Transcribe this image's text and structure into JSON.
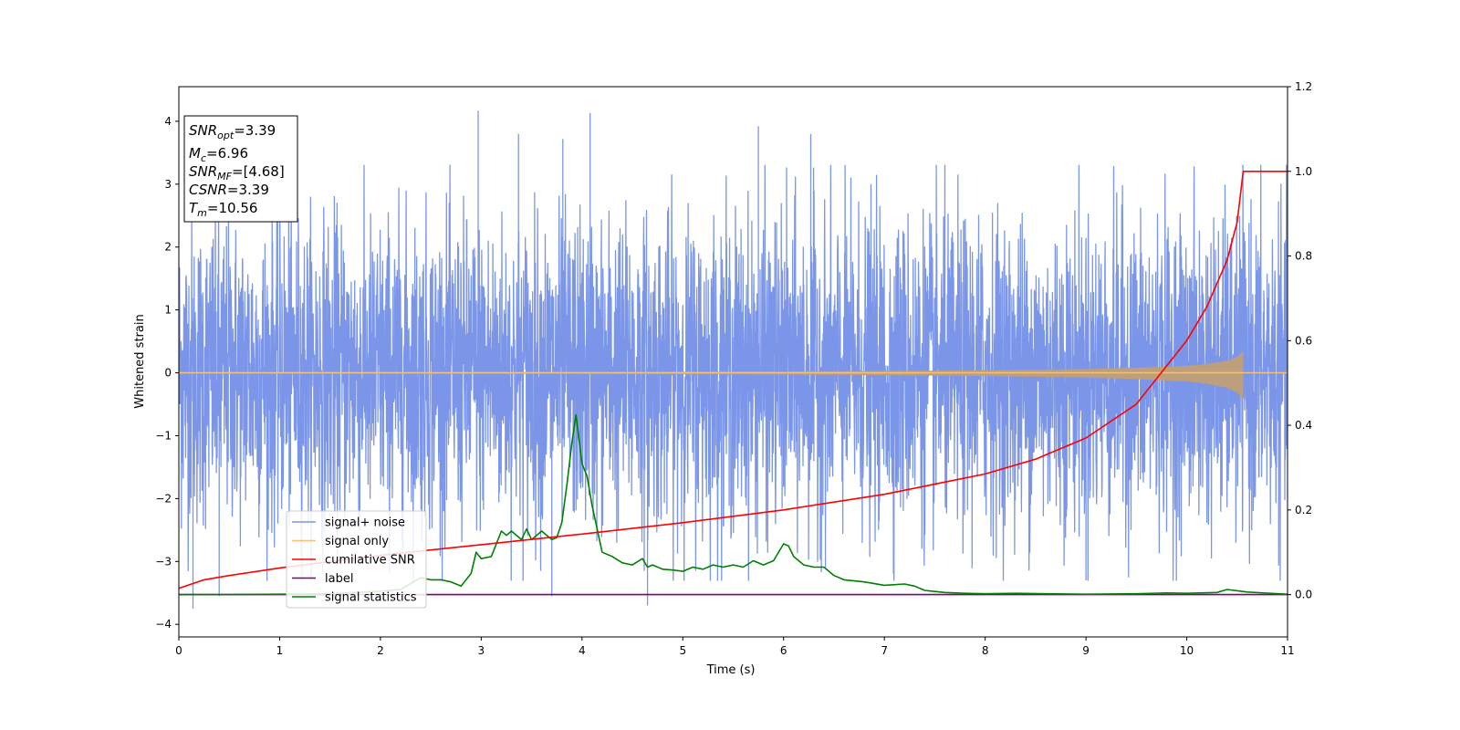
{
  "chart_data": {
    "type": "line",
    "xlabel": "Time (s)",
    "ylabel": "Whitened strain",
    "xlim": [
      0,
      11
    ],
    "ylim": [
      -4.2,
      4.55
    ],
    "y2lim": [
      -0.1,
      1.2
    ],
    "x_ticks": [
      0,
      1,
      2,
      3,
      4,
      5,
      6,
      7,
      8,
      9,
      10,
      11
    ],
    "x_tick_labels": [
      "0",
      "1",
      "2",
      "3",
      "4",
      "5",
      "6",
      "7",
      "8",
      "9",
      "10",
      "11"
    ],
    "y_ticks": [
      -4,
      -3,
      -2,
      -1,
      0,
      1,
      2,
      3,
      4
    ],
    "y_tick_labels": [
      "−4",
      "−3",
      "−2",
      "−1",
      "0",
      "1",
      "2",
      "3",
      "4"
    ],
    "y2_ticks": [
      0.0,
      0.2,
      0.4,
      0.6,
      0.8,
      1.0,
      1.2
    ],
    "y2_tick_labels": [
      "0.0",
      "0.2",
      "0.4",
      "0.6",
      "0.8",
      "1.0",
      "1.2"
    ],
    "grid": false,
    "legend_position": "lower-left",
    "info_box": {
      "snr_opt": {
        "main": "SNR",
        "sub": "opt",
        "value": "=3.39"
      },
      "mc": {
        "main": "M",
        "sub": "c",
        "value": "=6.96"
      },
      "snr_mf": {
        "main": "SNR",
        "sub": "MF",
        "value": "=[4.68]"
      },
      "csnr": {
        "main": "CSNR",
        "value": "=3.39"
      },
      "tm": {
        "main": "T",
        "sub": "m",
        "value": "=10.56"
      }
    },
    "series": [
      {
        "name": "signal+ noise",
        "color": "#7b96e8",
        "axis": "left",
        "description_values": {
          "envelope_min": -3.75,
          "envelope_max": 4.17,
          "typical_amplitude": 1.5
        },
        "peaks": [
          {
            "x": 2.97,
            "y": 4.17
          },
          {
            "x": 4.08,
            "y": 4.13
          },
          {
            "x": 5.75,
            "y": 3.92
          },
          {
            "x": 3.37,
            "y": 3.8
          },
          {
            "x": 6.27,
            "y": 3.8
          },
          {
            "x": 3.81,
            "y": 3.72
          },
          {
            "x": 0.14,
            "y": -3.75
          },
          {
            "x": 4.65,
            "y": -3.7
          },
          {
            "x": 0.4,
            "y": -3.55
          },
          {
            "x": 3.7,
            "y": -3.55
          },
          {
            "x": 9.0,
            "y": -3.3
          }
        ]
      },
      {
        "name": "signal only",
        "color": "#f5c07a",
        "axis": "left",
        "envelope": {
          "x": [
            0,
            2,
            4,
            6,
            7,
            8,
            9,
            9.5,
            10,
            10.2,
            10.4,
            10.5,
            10.56
          ],
          "y": [
            0.01,
            0.012,
            0.015,
            0.022,
            0.03,
            0.04,
            0.06,
            0.08,
            0.11,
            0.14,
            0.19,
            0.25,
            0.35
          ]
        },
        "merge_time": 10.56
      },
      {
        "name": "cumilative SNR",
        "color": "#ff0000",
        "axis": "right",
        "x": [
          0,
          0.25,
          0.5,
          1,
          2,
          3,
          4,
          5,
          6,
          7,
          8,
          8.5,
          9,
          9.5,
          10,
          10.2,
          10.4,
          10.5,
          10.56,
          11
        ],
        "y": [
          0.015,
          0.035,
          0.045,
          0.063,
          0.093,
          0.118,
          0.143,
          0.17,
          0.2,
          0.237,
          0.285,
          0.32,
          0.37,
          0.45,
          0.6,
          0.68,
          0.79,
          0.88,
          1.0,
          1.0
        ]
      },
      {
        "name": "label",
        "color": "#800080",
        "axis": "right",
        "x": [
          0,
          11
        ],
        "y": [
          0,
          0
        ]
      },
      {
        "name": "signal statistics",
        "color": "#008000",
        "axis": "right",
        "x": [
          0,
          0.5,
          1.0,
          1.5,
          2.0,
          2.2,
          2.4,
          2.5,
          2.6,
          2.7,
          2.8,
          2.9,
          2.95,
          3.0,
          3.1,
          3.2,
          3.25,
          3.3,
          3.4,
          3.45,
          3.5,
          3.6,
          3.7,
          3.75,
          3.8,
          3.85,
          3.9,
          3.94,
          4.0,
          4.05,
          4.1,
          4.2,
          4.3,
          4.4,
          4.5,
          4.6,
          4.65,
          4.7,
          4.8,
          4.9,
          5.0,
          5.1,
          5.2,
          5.3,
          5.4,
          5.5,
          5.6,
          5.7,
          5.8,
          5.9,
          6.0,
          6.05,
          6.1,
          6.2,
          6.3,
          6.4,
          6.5,
          6.6,
          6.8,
          7.0,
          7.2,
          7.3,
          7.4,
          7.6,
          7.8,
          8.0,
          8.3,
          8.6,
          9.0,
          9.5,
          9.8,
          10.0,
          10.3,
          10.4,
          10.6,
          11.0
        ],
        "y": [
          0.0,
          0.0,
          0.001,
          0.002,
          0.008,
          0.012,
          0.04,
          0.035,
          0.035,
          0.03,
          0.02,
          0.05,
          0.1,
          0.085,
          0.09,
          0.15,
          0.14,
          0.15,
          0.13,
          0.155,
          0.13,
          0.15,
          0.13,
          0.135,
          0.17,
          0.26,
          0.36,
          0.425,
          0.31,
          0.28,
          0.21,
          0.1,
          0.09,
          0.075,
          0.07,
          0.085,
          0.065,
          0.07,
          0.06,
          0.058,
          0.055,
          0.065,
          0.06,
          0.07,
          0.065,
          0.07,
          0.065,
          0.08,
          0.07,
          0.08,
          0.12,
          0.115,
          0.09,
          0.07,
          0.065,
          0.065,
          0.045,
          0.035,
          0.03,
          0.022,
          0.025,
          0.02,
          0.01,
          0.005,
          0.003,
          0.002,
          0.003,
          0.002,
          0.001,
          0.002,
          0.004,
          0.003,
          0.005,
          0.012,
          0.006,
          0.001
        ]
      }
    ]
  }
}
